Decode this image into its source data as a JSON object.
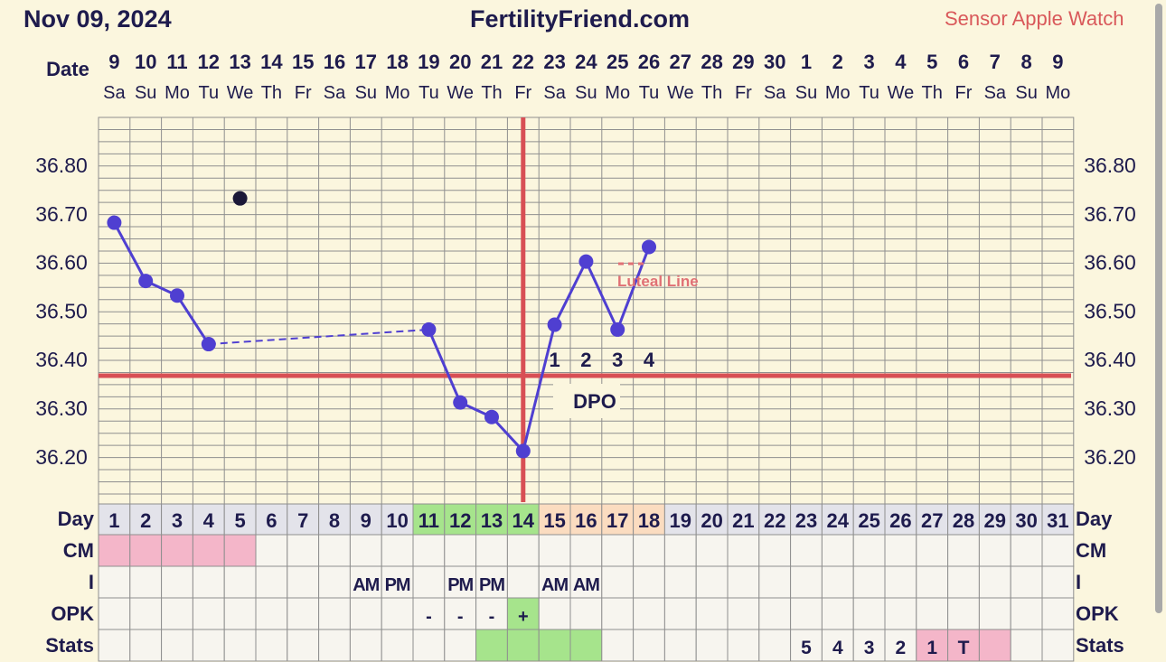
{
  "header": {
    "date": "Nov 09, 2024",
    "site": "FertilityFriend.com",
    "sensor": "Sensor Apple Watch"
  },
  "labels": {
    "date": "Date",
    "dpo": "DPO",
    "luteal_line": "Luteal Line",
    "rows": [
      "Day",
      "CM",
      "I",
      "OPK",
      "Stats"
    ]
  },
  "colors": {
    "background": "#fbf6de",
    "grid": "#8f8f8f",
    "temp_line": "#4f3fd1",
    "coverline": "#d84f55",
    "pink": "#f4b6c9",
    "green": "#a6e48c",
    "peach": "#fbdcc0",
    "day_row": "#e3e3ea",
    "navy": "#1e1b4d",
    "open_point": "#1b1838"
  },
  "chart_data": {
    "type": "line",
    "title": "FertilityFriend.com",
    "ylim": [
      36.1,
      36.9
    ],
    "y_ticks": [
      "36.80",
      "36.70",
      "36.60",
      "36.50",
      "36.40",
      "36.30",
      "36.20"
    ],
    "dates": [
      "9",
      "10",
      "11",
      "12",
      "13",
      "14",
      "15",
      "16",
      "17",
      "18",
      "19",
      "20",
      "21",
      "22",
      "23",
      "24",
      "25",
      "26",
      "27",
      "28",
      "29",
      "30",
      "1",
      "2",
      "3",
      "4",
      "5",
      "6",
      "7",
      "8",
      "9"
    ],
    "weekdays": [
      "Sa",
      "Su",
      "Mo",
      "Tu",
      "We",
      "Th",
      "Fr",
      "Sa",
      "Su",
      "Mo",
      "Tu",
      "We",
      "Th",
      "Fr",
      "Sa",
      "Su",
      "Mo",
      "Tu",
      "We",
      "Th",
      "Fr",
      "Sa",
      "Su",
      "Mo",
      "Tu",
      "We",
      "Th",
      "Fr",
      "Sa",
      "Su",
      "Mo"
    ],
    "cycle_days": [
      "1",
      "2",
      "3",
      "4",
      "5",
      "6",
      "7",
      "8",
      "9",
      "10",
      "11",
      "12",
      "13",
      "14",
      "15",
      "16",
      "17",
      "18",
      "19",
      "20",
      "21",
      "22",
      "23",
      "24",
      "25",
      "26",
      "27",
      "28",
      "29",
      "30",
      "31"
    ],
    "series": [
      {
        "points": [
          [
            1,
            36.68
          ],
          [
            2,
            36.56
          ],
          [
            3,
            36.53
          ],
          [
            4,
            36.43
          ],
          [
            11,
            36.46
          ],
          [
            12,
            36.31
          ],
          [
            13,
            36.28
          ],
          [
            14,
            36.21
          ],
          [
            15,
            36.47
          ],
          [
            16,
            36.6
          ],
          [
            17,
            36.46
          ],
          [
            18,
            36.63
          ]
        ]
      }
    ],
    "dashed_segments": [
      [
        4,
        11
      ]
    ],
    "discarded_points": [
      [
        5,
        36.73
      ]
    ],
    "coverline": 36.365,
    "ovulation_day": 14,
    "dpo_labels": [
      {
        "day": 15,
        "text": "1"
      },
      {
        "day": 16,
        "text": "2"
      },
      {
        "day": 17,
        "text": "3"
      },
      {
        "day": 18,
        "text": "4"
      }
    ],
    "day_row_highlights": {
      "green": [
        11,
        12,
        13,
        14
      ],
      "peach": [
        15,
        16,
        17,
        18
      ]
    },
    "cm_row": {
      "pink": [
        1,
        2,
        3,
        4,
        5
      ]
    },
    "i_row": [
      {
        "day": 9,
        "text": "AM"
      },
      {
        "day": 10,
        "text": "PM"
      },
      {
        "day": 12,
        "text": "PM"
      },
      {
        "day": 13,
        "text": "PM"
      },
      {
        "day": 15,
        "text": "AM"
      },
      {
        "day": 16,
        "text": "AM"
      }
    ],
    "opk_row": [
      {
        "day": 11,
        "text": "-"
      },
      {
        "day": 12,
        "text": "-"
      },
      {
        "day": 13,
        "text": "-"
      },
      {
        "day": 14,
        "text": "+",
        "color": "green"
      }
    ],
    "stats_row": [
      {
        "day": 13,
        "text": "",
        "color": "green"
      },
      {
        "day": 14,
        "text": "",
        "color": "green"
      },
      {
        "day": 15,
        "text": "",
        "color": "green"
      },
      {
        "day": 16,
        "text": "",
        "color": "green"
      },
      {
        "day": 23,
        "text": "5"
      },
      {
        "day": 24,
        "text": "4"
      },
      {
        "day": 25,
        "text": "3"
      },
      {
        "day": 26,
        "text": "2"
      },
      {
        "day": 27,
        "text": "1",
        "color": "pink"
      },
      {
        "day": 28,
        "text": "T",
        "color": "pink"
      },
      {
        "day": 29,
        "text": "",
        "color": "pink"
      }
    ]
  }
}
